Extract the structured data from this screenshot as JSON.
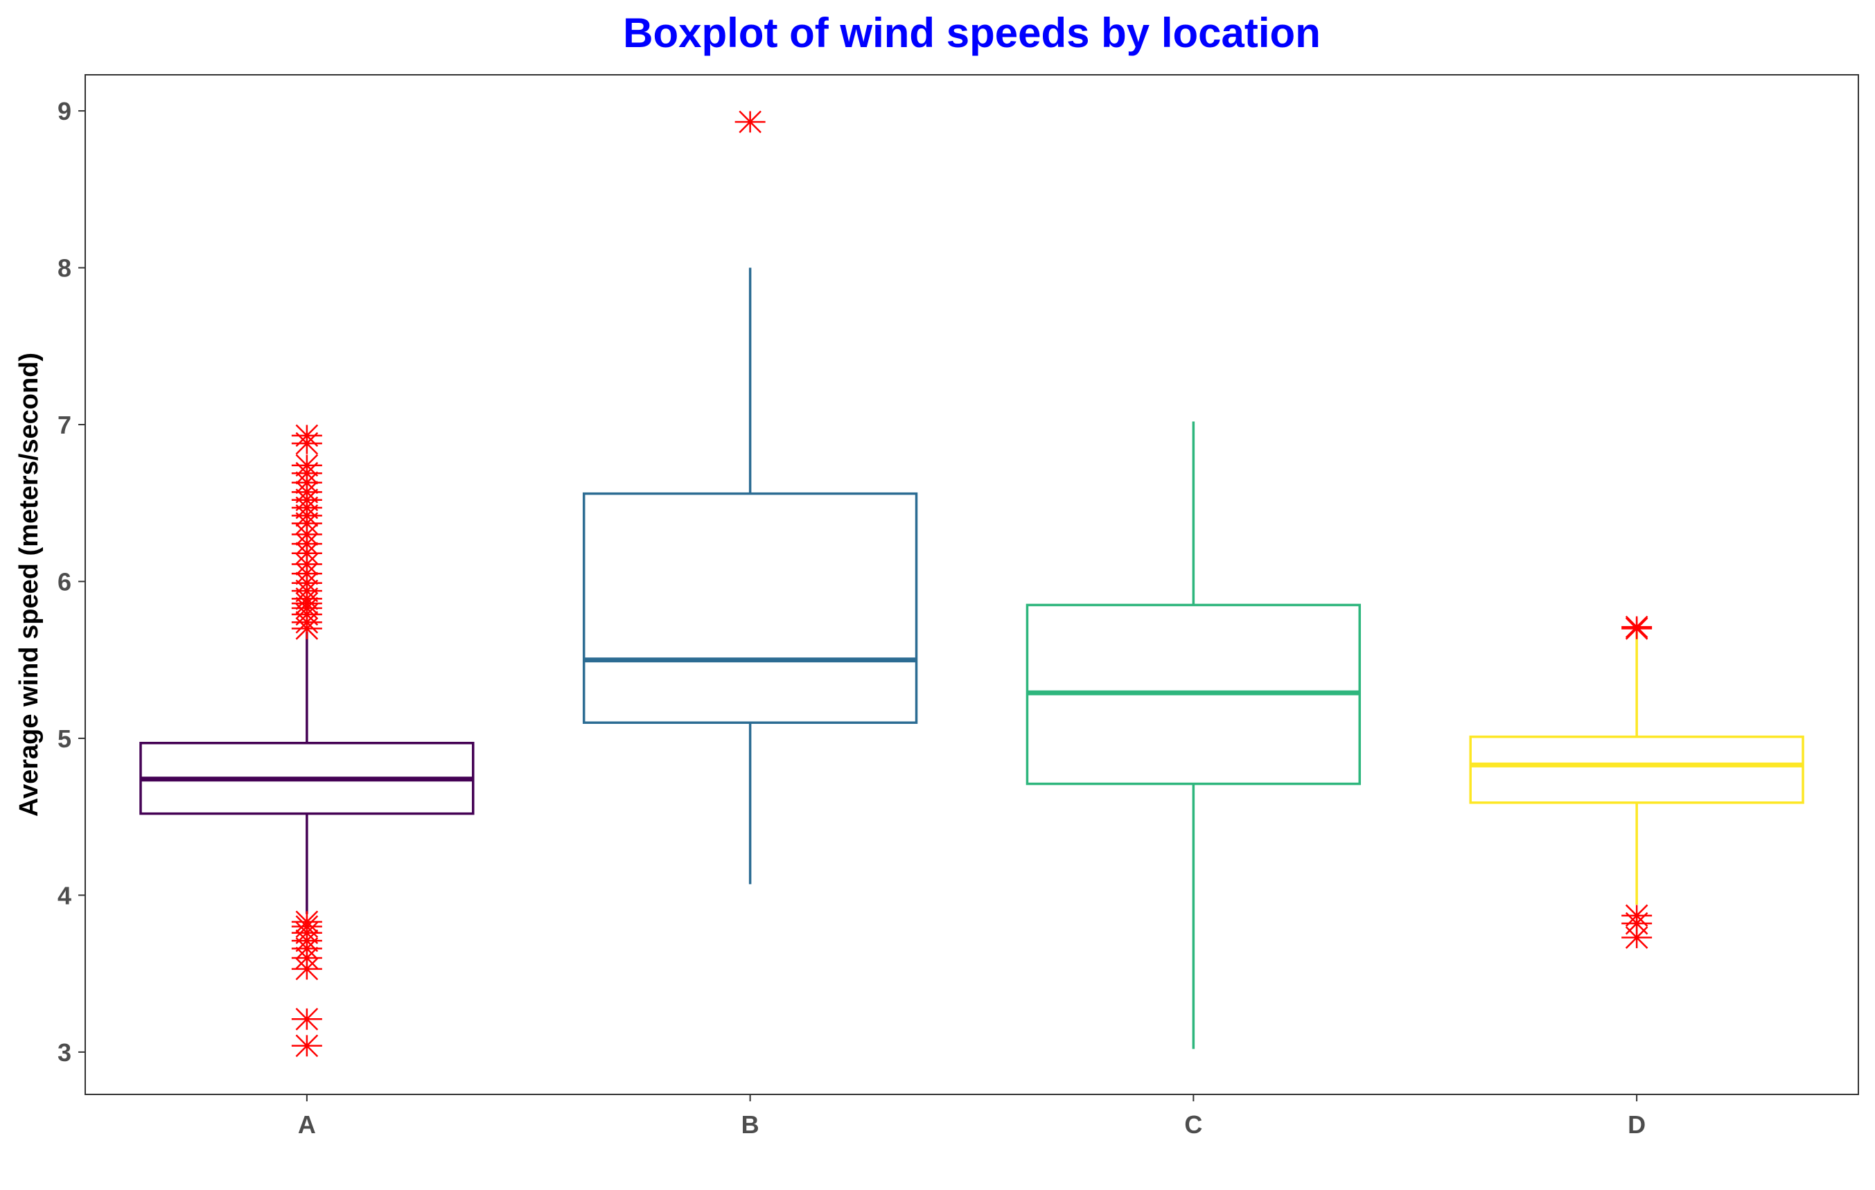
{
  "chart_data": {
    "type": "boxplot",
    "title": "Boxplot of wind speeds by location",
    "xlabel": "",
    "ylabel": "Average wind speed (meters/second)",
    "ylim": [
      2.73,
      9.23
    ],
    "yticks": [
      3,
      4,
      5,
      6,
      7,
      8,
      9
    ],
    "grid": false,
    "categories": [
      "A",
      "B",
      "C",
      "D"
    ],
    "boxes": [
      {
        "category": "A",
        "color": "#440154",
        "whisker_low": 3.88,
        "q1": 4.52,
        "median": 4.74,
        "q3": 4.97,
        "whisker_high": 5.68,
        "outliers": [
          3.04,
          3.21,
          3.53,
          3.6,
          3.66,
          3.71,
          3.76,
          3.8,
          3.83,
          5.7,
          5.74,
          5.79,
          5.83,
          5.86,
          5.89,
          5.94,
          5.99,
          6.05,
          6.11,
          6.18,
          6.24,
          6.3,
          6.37,
          6.42,
          6.47,
          6.52,
          6.57,
          6.63,
          6.69,
          6.74,
          6.88,
          6.93
        ]
      },
      {
        "category": "B",
        "color": "#2c6c93",
        "whisker_low": 4.07,
        "q1": 5.1,
        "median": 5.5,
        "q3": 6.56,
        "whisker_high": 8.0,
        "outliers": [
          8.93
        ]
      },
      {
        "category": "C",
        "color": "#2eb67d",
        "whisker_low": 3.02,
        "q1": 4.71,
        "median": 5.29,
        "q3": 5.85,
        "whisker_high": 7.02,
        "outliers": []
      },
      {
        "category": "D",
        "color": "#fde725",
        "whisker_low": 3.94,
        "q1": 4.59,
        "median": 4.83,
        "q3": 5.01,
        "whisker_high": 5.68,
        "outliers": [
          3.73,
          3.82,
          3.87,
          5.7,
          5.71
        ]
      }
    ],
    "outlier_color": "#ff0000",
    "outlier_marker": "asterisk",
    "title_color": "#0000ff"
  }
}
